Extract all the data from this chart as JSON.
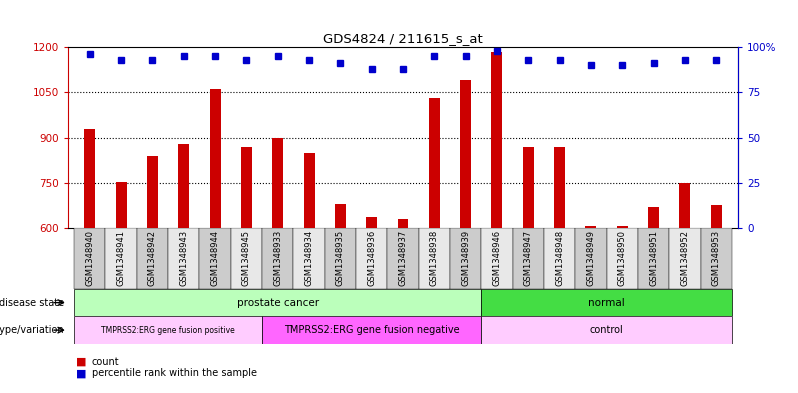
{
  "title": "GDS4824 / 211615_s_at",
  "samples": [
    "GSM1348940",
    "GSM1348941",
    "GSM1348942",
    "GSM1348943",
    "GSM1348944",
    "GSM1348945",
    "GSM1348933",
    "GSM1348934",
    "GSM1348935",
    "GSM1348936",
    "GSM1348937",
    "GSM1348938",
    "GSM1348939",
    "GSM1348946",
    "GSM1348947",
    "GSM1348948",
    "GSM1348949",
    "GSM1348950",
    "GSM1348951",
    "GSM1348952",
    "GSM1348953"
  ],
  "counts": [
    930,
    753,
    840,
    880,
    1060,
    870,
    900,
    850,
    680,
    635,
    630,
    1030,
    1090,
    1185,
    870,
    870,
    608,
    608,
    670,
    750,
    675
  ],
  "percentiles": [
    96,
    93,
    93,
    95,
    95,
    93,
    95,
    93,
    91,
    88,
    88,
    95,
    95,
    98,
    93,
    93,
    90,
    90,
    91,
    93,
    93
  ],
  "ylim_left": [
    600,
    1200
  ],
  "ylim_right": [
    0,
    100
  ],
  "yticks_left": [
    600,
    750,
    900,
    1050,
    1200
  ],
  "yticks_right": [
    0,
    25,
    50,
    75,
    100
  ],
  "bar_color": "#cc0000",
  "dot_color": "#0000cc",
  "background_color": "#ffffff",
  "groups": {
    "disease_state": [
      {
        "label": "prostate cancer",
        "start": 0,
        "end": 12,
        "color": "#bbffbb"
      },
      {
        "label": "normal",
        "start": 13,
        "end": 20,
        "color": "#44dd44"
      }
    ],
    "genotype": [
      {
        "label": "TMPRSS2:ERG gene fusion positive",
        "start": 0,
        "end": 5,
        "color": "#ffccff"
      },
      {
        "label": "TMPRSS2:ERG gene fusion negative",
        "start": 6,
        "end": 12,
        "color": "#ff66ff"
      },
      {
        "label": "control",
        "start": 13,
        "end": 20,
        "color": "#ffccff"
      }
    ]
  }
}
